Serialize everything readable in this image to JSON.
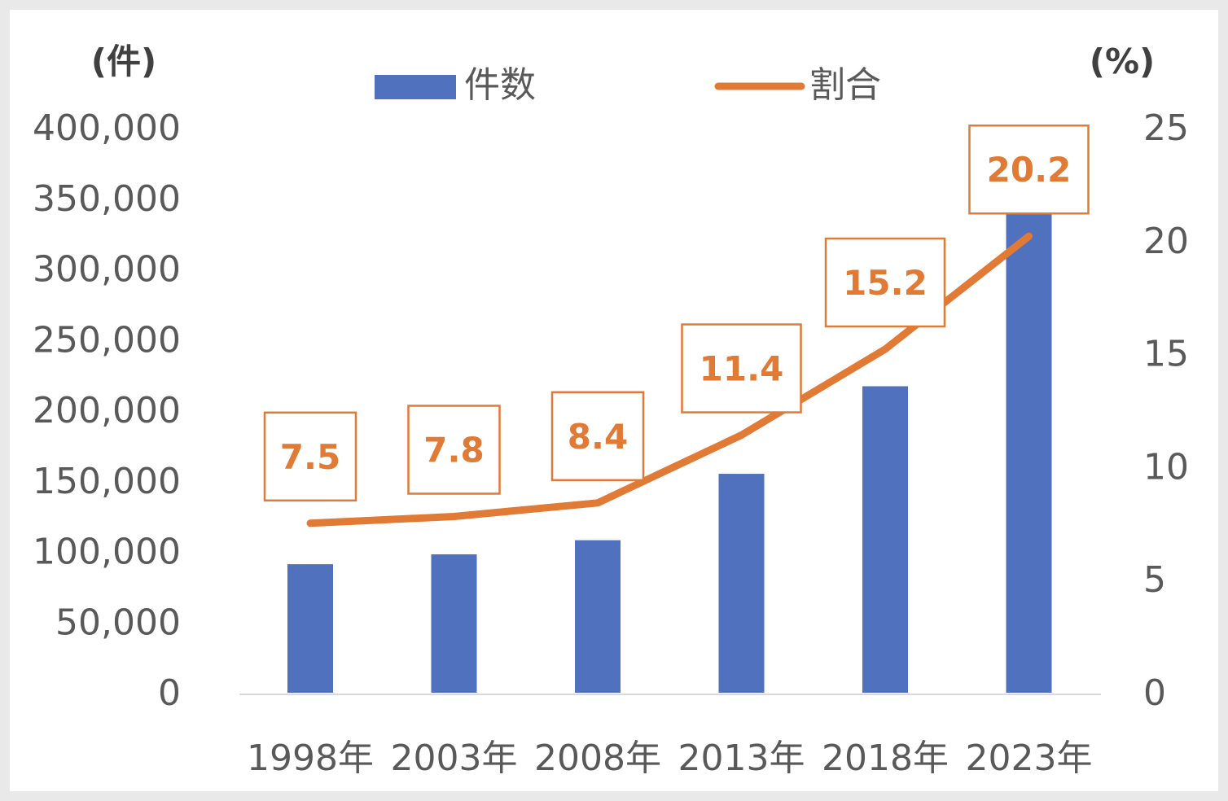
{
  "chart_data": {
    "type": "bar",
    "categories": [
      "1998年",
      "2003年",
      "2008年",
      "2013年",
      "2018年",
      "2023年"
    ],
    "series": [
      {
        "name": "件数",
        "type": "bar",
        "axis": "left",
        "color": "#4f71be",
        "values": [
          91000,
          98000,
          108000,
          155000,
          217000,
          342000
        ]
      },
      {
        "name": "割合",
        "type": "line",
        "axis": "right",
        "color": "#e07a35",
        "values": [
          7.5,
          7.8,
          8.4,
          11.4,
          15.2,
          20.2
        ],
        "data_labels": [
          "7.5",
          "7.8",
          "8.4",
          "11.4",
          "15.2",
          "20.2"
        ]
      }
    ],
    "y_left": {
      "unit": "(件)",
      "ylim": [
        0,
        400000
      ],
      "tick_labels": [
        "0",
        "50,000",
        "100,000",
        "150,000",
        "200,000",
        "250,000",
        "300,000",
        "350,000",
        "400,000"
      ]
    },
    "y_right": {
      "unit": "(%)",
      "ylim": [
        0,
        25
      ],
      "tick_labels": [
        "0",
        "5",
        "10",
        "15",
        "20",
        "25"
      ]
    },
    "legend_position": "top",
    "grid": false
  }
}
